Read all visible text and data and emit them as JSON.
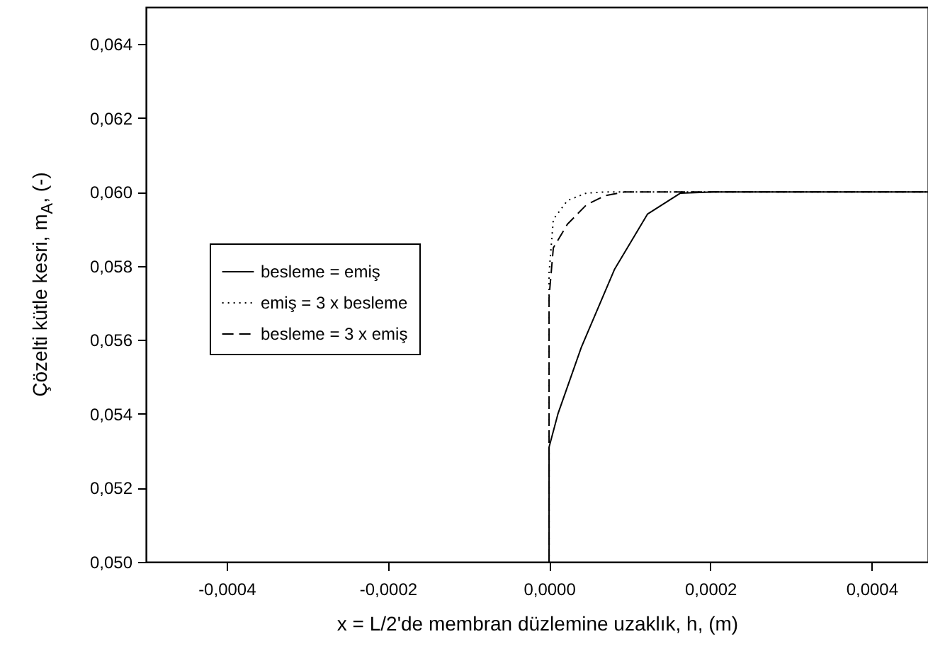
{
  "chart_data": {
    "type": "line",
    "xlabel": "x = L/2'de membran düzlemine uzaklık, h, (m)",
    "ylabel": "Çözelti kütle kesri, m$_{A}$, (-)",
    "xlim": [
      -0.0005,
      0.00047
    ],
    "ylim": [
      0.05,
      0.065
    ],
    "xticks": [
      {
        "value": -0.0004,
        "label": "-0,0004"
      },
      {
        "value": -0.0002,
        "label": "-0,0002"
      },
      {
        "value": 0,
        "label": "0,0000"
      },
      {
        "value": 0.0002,
        "label": "0,0002"
      },
      {
        "value": 0.0004,
        "label": "0,0004"
      }
    ],
    "yticks": [
      {
        "value": 0.05,
        "label": "0,050"
      },
      {
        "value": 0.052,
        "label": "0,052"
      },
      {
        "value": 0.054,
        "label": "0,054"
      },
      {
        "value": 0.056,
        "label": "0,056"
      },
      {
        "value": 0.058,
        "label": "0,058"
      },
      {
        "value": 0.06,
        "label": "0,060"
      },
      {
        "value": 0.062,
        "label": "0,062"
      },
      {
        "value": 0.064,
        "label": "0,064"
      }
    ],
    "grid": false,
    "legend": "left",
    "marker": "none",
    "series": [
      {
        "name": "besleme = emiş",
        "color": "#000000",
        "line_style": "solid",
        "x": [
          0,
          0,
          1.1e-05,
          4e-05,
          8.1e-05,
          0.000122,
          0.000163,
          0.000204,
          0.00047
        ],
        "values": [
          0.05,
          0.0531,
          0.054,
          0.0558,
          0.0579,
          0.0594,
          0.05997,
          0.06,
          0.06
        ]
      },
      {
        "name": "emiş = 3 x besleme",
        "color": "#000000",
        "line_style": "dotted",
        "x": [
          0,
          0,
          5.3e-06,
          2.28e-05,
          4.62e-05,
          6.9e-05,
          0.00047
        ],
        "values": [
          0.05,
          0.0578,
          0.05926,
          0.05977,
          0.05997,
          0.06,
          0.06
        ]
      },
      {
        "name": "besleme = 3 x emiş",
        "color": "#000000",
        "line_style": "dashed",
        "x": [
          0,
          0,
          5.3e-06,
          2.28e-05,
          4.62e-05,
          6.9e-05,
          9.3e-05,
          0.00047
        ],
        "values": [
          0.05,
          0.05715,
          0.05849,
          0.05913,
          0.05965,
          0.0599,
          0.06,
          0.06
        ]
      }
    ]
  }
}
